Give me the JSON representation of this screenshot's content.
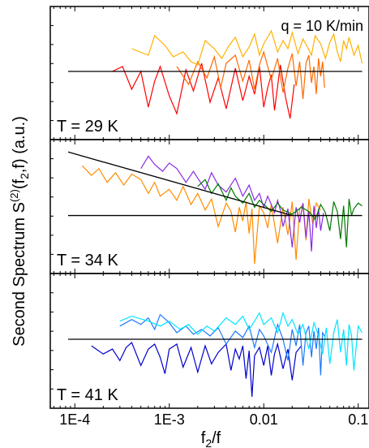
{
  "chart_data": {
    "type": "line",
    "xscale": "log",
    "xlabel_base": "f",
    "xlabel_sub": "2",
    "xlabel_tail": "/f",
    "ylabel_main": "Second Spectrum S",
    "ylabel_sup": "(2)",
    "ylabel_args": "(f",
    "ylabel_sub": "2",
    "ylabel_close": ",f) (a.u.)",
    "xlim": [
      5.5e-05,
      0.13
    ],
    "xticks": [
      {
        "value": 0.0001,
        "label": "1E-4"
      },
      {
        "value": 0.001,
        "label": "1E-3"
      },
      {
        "value": 0.01,
        "label": "0.01"
      },
      {
        "value": 0.1,
        "label": "0.1"
      }
    ],
    "annotation": "q = 10 K/min",
    "panels": [
      {
        "label": "T = 29 K",
        "ylim": [
          -4.2,
          4.0
        ],
        "baseline": 0.0,
        "fit_line": null,
        "series": [
          {
            "color": "#ff0000",
            "x": [
              0.00025,
              0.00032,
              0.0004,
              0.0005,
              0.0006,
              0.0007,
              0.0008,
              0.001,
              0.0012,
              0.0015,
              0.0018,
              0.0022,
              0.0027,
              0.0033,
              0.004,
              0.005,
              0.006,
              0.007,
              0.008,
              0.009,
              0.01,
              0.011,
              0.012,
              0.013,
              0.015,
              0.017,
              0.019,
              0.021
            ],
            "y": [
              0.0,
              0.3,
              -1.1,
              0.0,
              -2.2,
              -0.6,
              0.3,
              -1.5,
              -2.6,
              0.1,
              -1.2,
              0.5,
              -1.9,
              -0.4,
              -2.3,
              0.2,
              -1.8,
              -0.3,
              -1.4,
              0.3,
              -2.2,
              -1.0,
              -0.2,
              -2.4,
              0.4,
              -1.6,
              -2.9,
              -0.8
            ]
          },
          {
            "color": "#ff6a00",
            "x": [
              0.0012,
              0.0016,
              0.002,
              0.0025,
              0.003,
              0.0035,
              0.004,
              0.005,
              0.006,
              0.007,
              0.008,
              0.009,
              0.01,
              0.012,
              0.014,
              0.016,
              0.018,
              0.02,
              0.022,
              0.024,
              0.026,
              0.028,
              0.03,
              0.032,
              0.034,
              0.036,
              0.038,
              0.04,
              0.042,
              0.044
            ],
            "y": [
              0.3,
              -0.8,
              0.6,
              -0.4,
              0.9,
              -1.0,
              0.5,
              1.0,
              -0.6,
              0.7,
              -1.1,
              0.4,
              1.2,
              -0.5,
              0.8,
              -1.3,
              0.2,
              1.1,
              -0.9,
              0.6,
              -1.7,
              0.5,
              1.0,
              -0.7,
              0.3,
              -1.4,
              0.8,
              -0.3,
              0.6,
              -1.0
            ]
          },
          {
            "color": "#ffb000",
            "x": [
              0.0004,
              0.0006,
              0.0007,
              0.0009,
              0.0011,
              0.0014,
              0.0017,
              0.002,
              0.0024,
              0.003,
              0.0036,
              0.0043,
              0.005,
              0.006,
              0.007,
              0.008,
              0.009,
              0.01,
              0.012,
              0.014,
              0.016,
              0.018,
              0.02,
              0.023,
              0.026,
              0.029,
              0.032,
              0.035,
              0.04,
              0.045,
              0.05,
              0.055,
              0.06,
              0.065,
              0.07,
              0.075,
              0.08,
              0.09,
              0.1,
              0.11
            ],
            "y": [
              1.4,
              1.0,
              2.2,
              1.6,
              0.9,
              1.2,
              0.6,
              0.4,
              1.9,
              1.4,
              0.8,
              1.6,
              2.1,
              0.9,
              1.5,
              2.3,
              1.0,
              1.7,
              2.5,
              1.2,
              1.9,
              1.4,
              2.4,
              1.1,
              2.0,
              1.5,
              1.0,
              2.2,
              1.7,
              0.8,
              1.8,
              2.3,
              1.2,
              0.6,
              1.9,
              1.4,
              2.1,
              1.0,
              1.6,
              0.5
            ]
          }
        ]
      },
      {
        "label": "T = 34 K",
        "ylim": [
          -4.2,
          5.5
        ],
        "baseline": 0.0,
        "fit_line": {
          "x": [
            8.5e-05,
            0.02
          ],
          "y": [
            4.6,
            0.0
          ]
        },
        "series": [
          {
            "color": "#ff8c00",
            "x": [
              0.00012,
              0.00015,
              0.00018,
              0.00022,
              0.00027,
              0.00033,
              0.0004,
              0.0005,
              0.0006,
              0.0007,
              0.0008,
              0.001,
              0.0012,
              0.0014,
              0.0017,
              0.002,
              0.0024,
              0.0028,
              0.0033,
              0.004,
              0.0045,
              0.005,
              0.0055,
              0.006,
              0.0065,
              0.007,
              0.0075,
              0.008,
              0.009,
              0.01,
              0.011,
              0.012,
              0.014,
              0.016,
              0.018,
              0.02,
              0.022,
              0.024,
              0.026,
              0.028,
              0.03,
              0.033,
              0.036,
              0.04
            ],
            "y": [
              3.6,
              2.9,
              3.4,
              2.4,
              3.1,
              2.2,
              3.0,
              2.6,
              1.6,
              2.4,
              1.4,
              1.9,
              1.1,
              2.1,
              0.8,
              1.6,
              0.4,
              1.2,
              -0.8,
              0.9,
              0.3,
              -1.2,
              0.6,
              -0.4,
              1.0,
              -1.3,
              0.5,
              -3.5,
              0.7,
              0.2,
              -0.9,
              0.8,
              -2.0,
              0.6,
              -1.4,
              1.0,
              -3.2,
              0.5,
              0.8,
              -1.8,
              1.2,
              -0.6,
              0.9,
              0.4
            ]
          },
          {
            "color": "#8a2be2",
            "x": [
              0.0005,
              0.0006,
              0.0007,
              0.00085,
              0.001,
              0.0012,
              0.0015,
              0.0018,
              0.002,
              0.0024,
              0.0028,
              0.0033,
              0.004,
              0.005,
              0.006,
              0.007,
              0.008,
              0.009,
              0.01,
              0.011,
              0.012,
              0.013,
              0.014,
              0.015,
              0.016,
              0.018,
              0.02,
              0.022,
              0.024,
              0.026,
              0.028,
              0.03,
              0.032,
              0.034,
              0.036,
              0.038,
              0.04,
              0.043
            ],
            "y": [
              3.4,
              4.3,
              3.7,
              3.2,
              3.8,
              3.4,
              2.4,
              3.2,
              2.7,
              1.9,
              3.1,
              2.2,
              1.7,
              2.7,
              1.4,
              2.2,
              1.1,
              1.6,
              0.6,
              1.4,
              0.8,
              0.2,
              1.1,
              0.4,
              -0.8,
              0.5,
              -2.3,
              0.6,
              -0.5,
              0.9,
              -1.6,
              0.3,
              -2.6,
              0.7,
              -0.9,
              0.5,
              -1.1,
              0.2
            ]
          },
          {
            "color": "#007a00",
            "x": [
              0.002,
              0.0024,
              0.0028,
              0.0033,
              0.004,
              0.0045,
              0.005,
              0.006,
              0.007,
              0.008,
              0.009,
              0.01,
              0.012,
              0.014,
              0.016,
              0.02,
              0.025,
              0.03,
              0.035,
              0.04,
              0.045,
              0.05,
              0.055,
              0.06,
              0.065,
              0.07,
              0.075,
              0.08,
              0.085,
              0.09,
              0.1,
              0.11
            ],
            "y": [
              2.1,
              2.6,
              1.6,
              2.3,
              1.1,
              2.0,
              1.4,
              0.9,
              1.6,
              0.6,
              1.1,
              0.8,
              0.3,
              0.9,
              0.4,
              0.1,
              0.6,
              0.3,
              -0.3,
              0.8,
              0.2,
              -1.1,
              1.0,
              0.3,
              -1.7,
              0.7,
              -2.3,
              1.2,
              0.0,
              0.5,
              0.9,
              0.7
            ]
          }
        ]
      },
      {
        "label": "T = 41 K",
        "ylim": [
          -4.2,
          4.0
        ],
        "baseline": 0.0,
        "fit_line": null,
        "series": [
          {
            "color": "#0000cc",
            "x": [
              0.00015,
              0.0002,
              0.00025,
              0.0003,
              0.00035,
              0.0004,
              0.0005,
              0.0006,
              0.0007,
              0.0008,
              0.0009,
              0.001,
              0.0012,
              0.0014,
              0.0017,
              0.002,
              0.0024,
              0.0028,
              0.0033,
              0.004,
              0.0045,
              0.005,
              0.0055,
              0.006,
              0.0065,
              0.007,
              0.0075,
              0.008,
              0.009,
              0.01,
              0.011,
              0.012,
              0.013,
              0.014,
              0.016,
              0.018,
              0.02,
              0.022,
              0.025
            ],
            "y": [
              -0.4,
              -0.9,
              -0.6,
              -1.3,
              -0.5,
              -0.2,
              -1.6,
              -0.6,
              -0.3,
              -1.1,
              -2.1,
              -0.6,
              -0.3,
              -1.7,
              -0.5,
              -2.0,
              -0.4,
              -1.5,
              -0.8,
              -0.3,
              -1.9,
              -0.6,
              -1.2,
              -0.4,
              -2.4,
              -0.7,
              -3.5,
              -1.0,
              -0.5,
              -1.6,
              -0.4,
              -2.2,
              -0.9,
              -0.3,
              -1.8,
              -0.6,
              -2.5,
              -0.8,
              -0.4
            ]
          },
          {
            "color": "#1e78ff",
            "x": [
              0.0003,
              0.0004,
              0.0005,
              0.0006,
              0.0007,
              0.0008,
              0.001,
              0.0012,
              0.0015,
              0.0018,
              0.0022,
              0.0027,
              0.0033,
              0.004,
              0.005,
              0.006,
              0.007,
              0.008,
              0.009,
              0.01,
              0.012,
              0.014,
              0.016,
              0.018,
              0.02,
              0.022,
              0.024,
              0.026,
              0.028,
              0.03,
              0.032,
              0.034,
              0.036,
              0.038,
              0.04,
              0.042,
              0.045
            ],
            "y": [
              0.8,
              1.2,
              0.9,
              1.3,
              0.6,
              1.5,
              1.0,
              0.4,
              0.8,
              0.3,
              0.6,
              0.2,
              0.7,
              -0.3,
              0.5,
              0.1,
              0.8,
              -0.5,
              0.6,
              0.2,
              -0.8,
              0.9,
              0.0,
              -1.3,
              0.6,
              -0.4,
              0.9,
              -1.6,
              0.4,
              0.8,
              -1.1,
              0.5,
              -0.6,
              0.7,
              -2.2,
              0.4,
              0.1
            ]
          },
          {
            "color": "#00e5ff",
            "x": [
              0.0003,
              0.0004,
              0.0006,
              0.0008,
              0.001,
              0.0013,
              0.0016,
              0.002,
              0.0025,
              0.003,
              0.004,
              0.005,
              0.006,
              0.007,
              0.008,
              0.009,
              0.01,
              0.012,
              0.014,
              0.016,
              0.018,
              0.02,
              0.023,
              0.026,
              0.03,
              0.034,
              0.038,
              0.042,
              0.046,
              0.05,
              0.055,
              0.06,
              0.065,
              0.07,
              0.075,
              0.08,
              0.085,
              0.09,
              0.1,
              0.11
            ],
            "y": [
              1.1,
              1.4,
              1.1,
              0.8,
              1.1,
              0.6,
              0.9,
              0.3,
              0.8,
              0.5,
              1.3,
              0.9,
              1.4,
              0.6,
              1.1,
              1.6,
              0.9,
              1.3,
              0.4,
              1.6,
              0.8,
              1.2,
              0.3,
              0.9,
              -0.6,
              1.0,
              0.2,
              -0.9,
              0.7,
              -1.5,
              0.4,
              1.2,
              -0.8,
              0.6,
              -1.6,
              0.9,
              0.2,
              -1.9,
              0.8,
              0.4
            ]
          }
        ]
      }
    ]
  }
}
